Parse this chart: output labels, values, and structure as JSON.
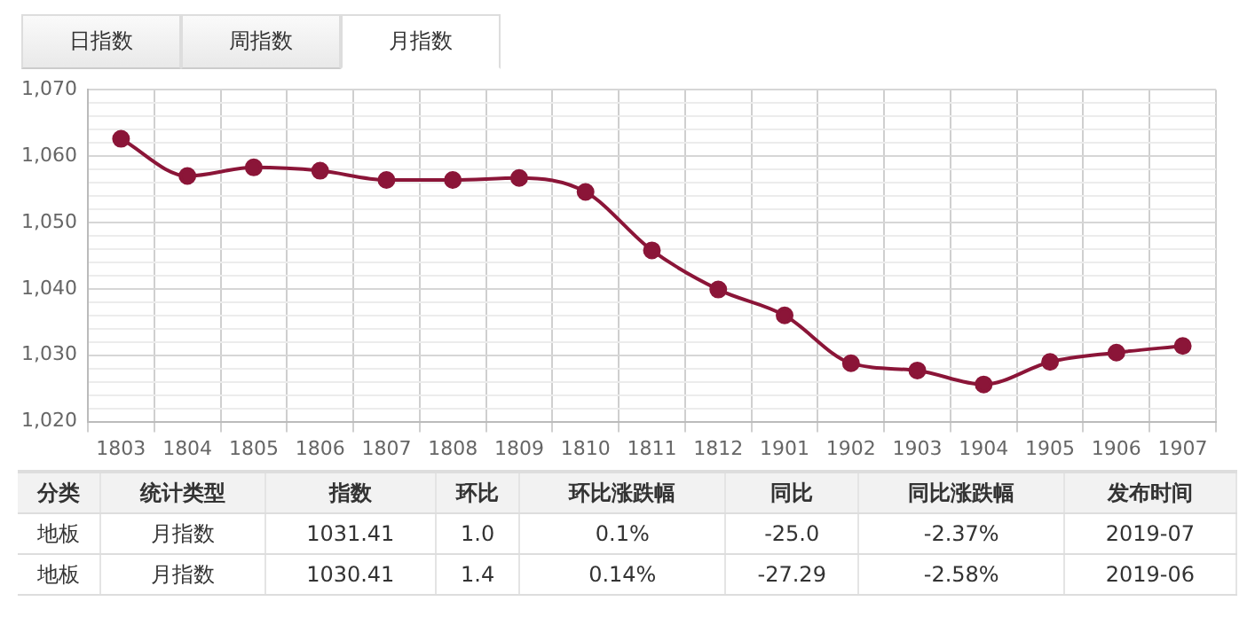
{
  "chart_data": [
    {
      "type": "line",
      "annotations": [
        "日指数",
        "周指数",
        "月指数"
      ],
      "categories": [
        "1803",
        "1804",
        "1805",
        "1806",
        "1807",
        "1808",
        "1809",
        "1810",
        "1811",
        "1812",
        "1901",
        "1902",
        "1903",
        "1904",
        "1905",
        "1906",
        "1907"
      ],
      "values": [
        1062.6,
        1057.0,
        1058.3,
        1057.8,
        1056.4,
        1056.4,
        1056.7,
        1054.6,
        1045.8,
        1039.9,
        1036.0,
        1028.8,
        1027.7,
        1025.6,
        1029.0,
        1030.4,
        1031.4
      ],
      "color": "#8b1538",
      "marker": "circle",
      "grid": true,
      "legend": false,
      "ylim": [
        1020,
        1070
      ],
      "yticks": [
        {
          "value": 1020,
          "label": "1,020"
        },
        {
          "value": 1022,
          "label": null
        },
        {
          "value": 1024,
          "label": null
        },
        {
          "value": 1026,
          "label": null
        },
        {
          "value": 1028,
          "label": null
        },
        {
          "value": 1030,
          "label": "1,030"
        },
        {
          "value": 1032,
          "label": null
        },
        {
          "value": 1034,
          "label": null
        },
        {
          "value": 1036,
          "label": null
        },
        {
          "value": 1038,
          "label": null
        },
        {
          "value": 1040,
          "label": "1,040"
        },
        {
          "value": 1042,
          "label": null
        },
        {
          "value": 1044,
          "label": null
        },
        {
          "value": 1046,
          "label": null
        },
        {
          "value": 1048,
          "label": null
        },
        {
          "value": 1050,
          "label": "1,050"
        },
        {
          "value": 1052,
          "label": null
        },
        {
          "value": 1054,
          "label": null
        },
        {
          "value": 1056,
          "label": null
        },
        {
          "value": 1058,
          "label": null
        },
        {
          "value": 1060,
          "label": "1,060"
        },
        {
          "value": 1062,
          "label": null
        },
        {
          "value": 1064,
          "label": null
        },
        {
          "value": 1066,
          "label": null
        },
        {
          "value": 1068,
          "label": null
        },
        {
          "value": 1070,
          "label": "1,070"
        }
      ]
    },
    {
      "type": "other",
      "categories": [
        "分类",
        "统计类型",
        "指数",
        "环比",
        "环比涨跌幅",
        "同比",
        "同比涨跌幅",
        "发布时间"
      ],
      "annotations": [
        "地板",
        "月指数",
        "1031.41",
        "1.0",
        "0.1%",
        "-25.0",
        "-2.37%",
        "2019-07",
        "地板",
        "月指数",
        "1030.41",
        "1.4",
        "0.14%",
        "-27.29",
        "-2.58%",
        "2019-06"
      ]
    }
  ]
}
